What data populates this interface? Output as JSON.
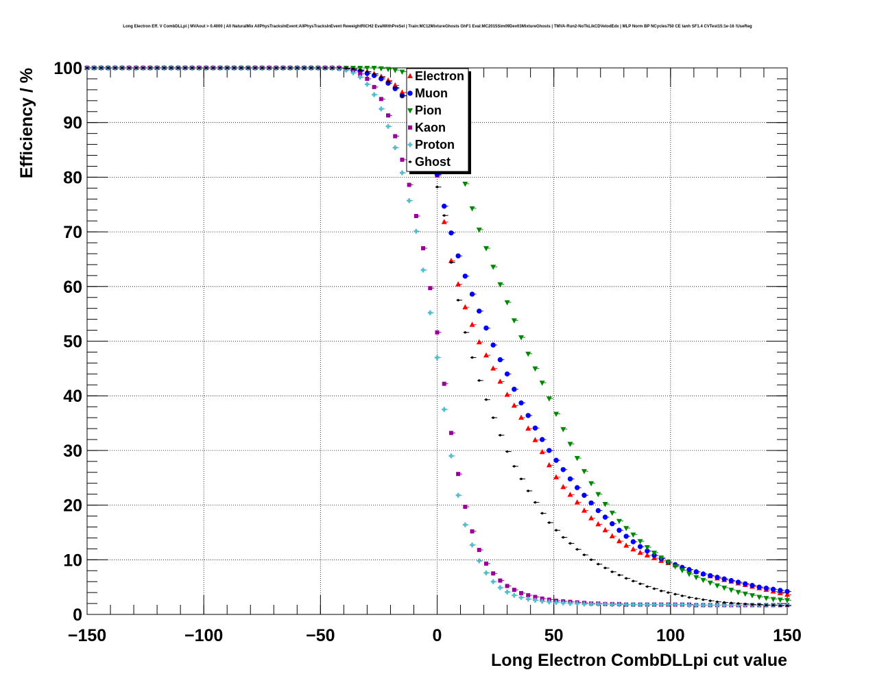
{
  "title": "Long Electron Eff. V CombDLLpi | MVAout > 0.4000 | All NaturalMix AllPhysTracksInEvent:AllPhysTracksInEvent ReweightRICH2 EvalWithPreSel | Train:MC12MixtureGhosts GhF1 Eval:MC2015Sim09Dev03MixtureGhosts | TMVA-Run2-NoTkLikCDVelodEdx | MLP Norm BP NCycles750 CE tanh SF1.4 CVTest15:1e-16 !UseReg",
  "chart_data": {
    "type": "scatter",
    "title": "Long Electron Eff. V CombDLLpi | MVAout > 0.4000 | All NaturalMix AllPhysTracksInEvent:AllPhysTracksInEvent ReweightRICH2 EvalWithPreSel | Train:MC12MixtureGhosts GhF1 Eval:MC2015Sim09Dev03MixtureGhosts | TMVA-Run2-NoTkLikCDVelodEdx | MLP Norm BP NCycles750 CE tanh SF1.4 CVTest15:1e-16 !UseReg",
    "xlabel": "Long Electron CombDLLpi cut value",
    "ylabel": "Efficiency / %",
    "xlim": [
      -150,
      150
    ],
    "ylim": [
      0,
      100
    ],
    "xticks": [
      "−150",
      "−100",
      "−50",
      "0",
      "50",
      "100",
      "150"
    ],
    "xtick_values": [
      -150,
      -100,
      -50,
      0,
      50,
      100,
      150
    ],
    "yticks": [
      "0",
      "10",
      "20",
      "30",
      "40",
      "50",
      "60",
      "70",
      "80",
      "90",
      "100"
    ],
    "ytick_values": [
      0,
      10,
      20,
      30,
      40,
      50,
      60,
      70,
      80,
      90,
      100
    ],
    "grid": true,
    "legend_position": "top-center",
    "x": [
      -150,
      -147,
      -144,
      -141,
      -138,
      -135,
      -132,
      -129,
      -126,
      -123,
      -120,
      -117,
      -114,
      -111,
      -108,
      -105,
      -102,
      -99,
      -96,
      -93,
      -90,
      -87,
      -84,
      -81,
      -78,
      -75,
      -72,
      -69,
      -66,
      -63,
      -60,
      -57,
      -54,
      -51,
      -48,
      -45,
      -42,
      -39,
      -36,
      -33,
      -30,
      -27,
      -24,
      -21,
      -18,
      -15,
      -12,
      -9,
      -6,
      -3,
      0,
      3,
      6,
      9,
      12,
      15,
      18,
      21,
      24,
      27,
      30,
      33,
      36,
      39,
      42,
      45,
      48,
      51,
      54,
      57,
      60,
      63,
      66,
      69,
      72,
      75,
      78,
      81,
      84,
      87,
      90,
      93,
      96,
      99,
      102,
      105,
      108,
      111,
      114,
      117,
      120,
      123,
      126,
      129,
      132,
      135,
      138,
      141,
      144,
      147,
      150
    ],
    "series": [
      {
        "name": "Electron",
        "marker": "triangle-up",
        "color": "#ff0000",
        "values": [
          100,
          100,
          100,
          100,
          100,
          100,
          100,
          100,
          100,
          100,
          100,
          100,
          100,
          100,
          100,
          100,
          100,
          100,
          100,
          100,
          100,
          100,
          100,
          100,
          100,
          100,
          100,
          100,
          100,
          100,
          100,
          100,
          100,
          100,
          100,
          100,
          100,
          99.9,
          99.8,
          99.6,
          99.3,
          98.9,
          98.4,
          97.7,
          96.8,
          95.5,
          93.8,
          91.4,
          88.2,
          84.4,
          80.3,
          71.8,
          64.7,
          60.4,
          56.2,
          53.0,
          49.8,
          47.4,
          45.0,
          42.6,
          40.2,
          38.2,
          36.0,
          34.0,
          31.9,
          29.7,
          27.3,
          25.1,
          23.3,
          21.9,
          20.5,
          19.0,
          17.6,
          16.5,
          15.4,
          14.3,
          13.4,
          12.6,
          11.9,
          11.3,
          10.8,
          10.3,
          9.8,
          9.4,
          9.0,
          8.6,
          8.2,
          7.8,
          7.4,
          7.0,
          6.6,
          6.3,
          6.0,
          5.7,
          5.4,
          5.1,
          4.8,
          4.5,
          4.2,
          3.9,
          3.6
        ]
      },
      {
        "name": "Muon",
        "marker": "circle",
        "color": "#0000ff",
        "values": [
          100,
          100,
          100,
          100,
          100,
          100,
          100,
          100,
          100,
          100,
          100,
          100,
          100,
          100,
          100,
          100,
          100,
          100,
          100,
          100,
          100,
          100,
          100,
          100,
          100,
          100,
          100,
          100,
          100,
          100,
          100,
          100,
          100,
          100,
          100,
          100,
          99.9,
          99.8,
          99.6,
          99.4,
          99.0,
          98.6,
          98.0,
          97.2,
          96.2,
          94.9,
          93.3,
          91.3,
          88.8,
          85.0,
          80.5,
          74.7,
          69.8,
          65.6,
          61.9,
          58.6,
          55.5,
          52.4,
          49.3,
          46.6,
          44.0,
          41.2,
          38.7,
          36.4,
          34.1,
          32.0,
          30.0,
          28.2,
          26.5,
          24.8,
          23.2,
          21.8,
          20.4,
          19.0,
          17.8,
          16.6,
          15.4,
          14.3,
          13.3,
          12.4,
          11.6,
          10.8,
          10.2,
          9.6,
          9.1,
          8.6,
          8.2,
          7.8,
          7.4,
          7.1,
          6.8,
          6.5,
          6.2,
          5.9,
          5.6,
          5.3,
          5.0,
          4.8,
          4.6,
          4.4,
          4.2
        ]
      },
      {
        "name": "Pion",
        "marker": "triangle-down",
        "color": "#008800",
        "values": [
          100,
          100,
          100,
          100,
          100,
          100,
          100,
          100,
          100,
          100,
          100,
          100,
          100,
          100,
          100,
          100,
          100,
          100,
          100,
          100,
          100,
          100,
          100,
          100,
          100,
          100,
          100,
          100,
          100,
          100,
          100,
          100,
          100,
          100,
          100,
          100,
          100,
          100,
          100,
          100,
          100,
          100,
          99.9,
          99.8,
          99.6,
          99.3,
          98.8,
          98.2,
          97.4,
          96.3,
          95.0,
          93.2,
          90.0,
          84.5,
          78.8,
          74.3,
          70.4,
          67.0,
          63.6,
          60.4,
          57.1,
          53.8,
          50.7,
          47.7,
          45.0,
          42.4,
          39.5,
          36.7,
          33.9,
          31.2,
          28.6,
          26.2,
          24.0,
          22.0,
          20.2,
          18.6,
          17.1,
          15.8,
          14.6,
          13.4,
          12.3,
          11.3,
          10.4,
          9.6,
          8.8,
          8.1,
          7.4,
          6.8,
          6.3,
          5.8,
          5.3,
          4.9,
          4.5,
          4.1,
          3.8,
          3.5,
          3.2,
          3.0,
          2.8,
          2.7,
          2.6
        ]
      },
      {
        "name": "Kaon",
        "marker": "square",
        "color": "#990099",
        "values": [
          100,
          100,
          100,
          100,
          100,
          100,
          100,
          100,
          100,
          100,
          100,
          100,
          100,
          100,
          100,
          100,
          100,
          100,
          100,
          100,
          100,
          100,
          100,
          100,
          100,
          100,
          100,
          100,
          100,
          100,
          100,
          100,
          100,
          100,
          100,
          100,
          100,
          99.8,
          99.5,
          98.9,
          98.0,
          96.5,
          94.3,
          91.3,
          87.5,
          83.2,
          78.6,
          72.9,
          67.0,
          59.7,
          51.6,
          42.2,
          33.2,
          25.7,
          19.7,
          15.2,
          11.8,
          9.3,
          7.5,
          6.2,
          5.2,
          4.5,
          3.9,
          3.5,
          3.2,
          2.9,
          2.7,
          2.5,
          2.4,
          2.3,
          2.2,
          2.1,
          2.0,
          2.0,
          1.9,
          1.9,
          1.9,
          1.8,
          1.8,
          1.8,
          1.8,
          1.8,
          1.8,
          1.8,
          1.8,
          1.8,
          1.8,
          1.7,
          1.7,
          1.7,
          1.7,
          1.7,
          1.7,
          1.7,
          1.7,
          1.7,
          1.7,
          1.7,
          1.7,
          1.7,
          1.7
        ]
      },
      {
        "name": "Proton",
        "marker": "cross",
        "color": "#55bbcc",
        "values": [
          100,
          100,
          100,
          100,
          100,
          100,
          100,
          100,
          100,
          100,
          100,
          100,
          100,
          100,
          100,
          100,
          100,
          100,
          100,
          100,
          100,
          100,
          100,
          100,
          100,
          100,
          100,
          100,
          100,
          100,
          100,
          100,
          100,
          100,
          100,
          100,
          99.9,
          99.6,
          99.1,
          98.3,
          97.0,
          95.1,
          92.5,
          89.3,
          85.4,
          80.8,
          75.7,
          70.1,
          63.0,
          55.2,
          47.0,
          37.5,
          29.0,
          21.8,
          16.4,
          12.7,
          9.8,
          7.6,
          6.0,
          4.9,
          4.1,
          3.5,
          3.1,
          2.8,
          2.6,
          2.4,
          2.3,
          2.2,
          2.1,
          2.0,
          2.0,
          1.9,
          1.9,
          1.9,
          1.9,
          1.8,
          1.8,
          1.8,
          1.8,
          1.8,
          1.8,
          1.8,
          1.8,
          1.8,
          1.8,
          1.8,
          1.7,
          1.7,
          1.7,
          1.7,
          1.7,
          1.7,
          1.7,
          1.7,
          1.7,
          1.7,
          1.7,
          1.7,
          1.7,
          1.7,
          1.7
        ]
      },
      {
        "name": "Ghost",
        "marker": "star",
        "color": "#000000",
        "values": [
          100,
          100,
          100,
          100,
          100,
          100,
          100,
          100,
          100,
          100,
          100,
          100,
          100,
          100,
          100,
          100,
          100,
          100,
          100,
          100,
          100,
          100,
          100,
          100,
          100,
          100,
          100,
          100,
          100,
          100,
          100,
          100,
          100,
          100,
          100,
          100,
          100,
          99.9,
          99.8,
          99.6,
          99.3,
          98.9,
          98.3,
          97.5,
          96.4,
          94.9,
          92.9,
          90.3,
          87.0,
          83.0,
          78.2,
          73.0,
          64.4,
          57.5,
          51.6,
          47.0,
          42.8,
          39.3,
          36.0,
          32.8,
          29.8,
          27.1,
          24.8,
          22.6,
          20.5,
          18.5,
          16.8,
          15.4,
          14.1,
          13.0,
          11.9,
          10.9,
          10.0,
          9.2,
          8.5,
          7.8,
          7.2,
          6.6,
          6.1,
          5.6,
          5.1,
          4.7,
          4.3,
          4.0,
          3.7,
          3.4,
          3.1,
          2.9,
          2.7,
          2.5,
          2.3,
          2.2,
          2.1,
          2.0,
          1.9,
          1.8,
          1.8,
          1.7,
          1.7,
          1.6,
          1.6
        ]
      }
    ]
  }
}
